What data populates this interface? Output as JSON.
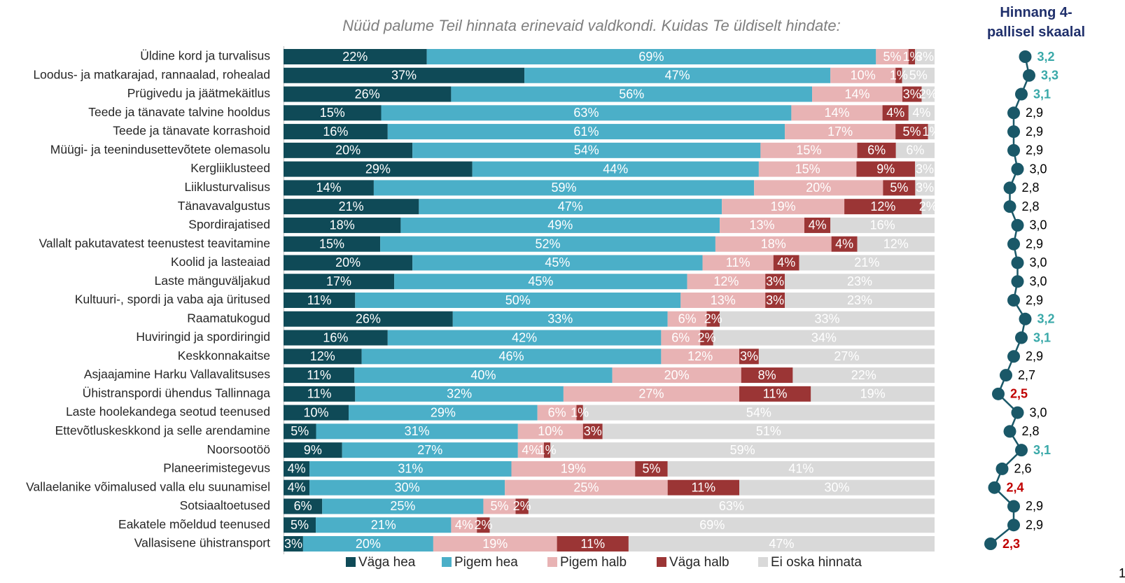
{
  "chart_data": [
    {
      "type": "bar",
      "orientation": "horizontal",
      "stacked": true,
      "title": "Nüüd palume Teil hinnata erinevaid valdkondi. Kuidas Te üldiselt hindate:",
      "categories": [
        "Üldine kord ja turvalisus",
        "Loodus- ja matkarajad, rannaalad, rohealad",
        "Prügivedu ja jäätmekäitlus",
        "Teede ja tänavate talvine hooldus",
        "Teede ja tänavate korrashoid",
        "Müügi- ja teenindusettevõtete olemasolu",
        "Kergliiklusteed",
        "Liiklusturvalisus",
        "Tänavavalgustus",
        "Spordirajatised",
        "Vallalt pakutavatest teenustest teavitamine",
        "Koolid ja lasteaiad",
        "Laste mänguväljakud",
        "Kultuuri-, spordi ja vaba aja üritused",
        "Raamatukogud",
        "Huviringid ja spordiringid",
        "Keskkonnakaitse",
        "Asjaajamine Harku Vallavalitsuses",
        "Ühistranspordi ühendus Tallinnaga",
        "Laste hoolekandega seotud teenused",
        "Ettevõtluskeskkond ja selle arendamine",
        "Noorsootöö",
        "Planeerimistegevus",
        "Vallaelanike võimalused valla elu suunamisel",
        "Sotsiaaltoetused",
        "Eakatele mõeldud teenused",
        "Vallasisene ühistransport"
      ],
      "series": [
        {
          "name": "Väga hea",
          "color": "#0f4a57",
          "values": [
            22,
            37,
            26,
            15,
            16,
            20,
            29,
            14,
            21,
            18,
            15,
            20,
            17,
            11,
            26,
            16,
            12,
            11,
            11,
            10,
            5,
            9,
            4,
            4,
            6,
            5,
            3
          ],
          "value_labels": [
            "22%",
            "37%",
            "26%",
            "15%",
            "16%",
            "20%",
            "29%",
            "14%",
            "21%",
            "18%",
            "15%",
            "20%",
            "17%",
            "11%",
            "26%",
            "16%",
            "12%",
            "11%",
            "11%",
            "10%",
            "5%",
            "9%",
            "4%",
            "4%",
            "6%",
            "5%",
            "3%"
          ]
        },
        {
          "name": "Pigem hea",
          "color": "#4bafc8",
          "values": [
            69,
            47,
            56,
            63,
            61,
            54,
            44,
            59,
            47,
            49,
            52,
            45,
            45,
            50,
            33,
            42,
            46,
            40,
            32,
            29,
            31,
            27,
            31,
            30,
            25,
            21,
            20
          ],
          "value_labels": [
            "69%",
            "47%",
            "56%",
            "63%",
            "61%",
            "54%",
            "44%",
            "59%",
            "47%",
            "49%",
            "52%",
            "45%",
            "45%",
            "50%",
            "33%",
            "42%",
            "46%",
            "40%",
            "32%",
            "29%",
            "31%",
            "27%",
            "31%",
            "30%",
            "25%",
            "21%",
            "20%"
          ]
        },
        {
          "name": "Pigem halb",
          "color": "#e8b3b4",
          "values": [
            5,
            10,
            14,
            14,
            17,
            15,
            15,
            20,
            19,
            13,
            18,
            11,
            12,
            13,
            6,
            6,
            12,
            20,
            27,
            6,
            10,
            4,
            19,
            25,
            5,
            4,
            19
          ],
          "value_labels": [
            "5%",
            "10%",
            "14%",
            "14%",
            "17%",
            "15%",
            "15%",
            "20%",
            "19%",
            "13%",
            "18%",
            "11%",
            "12%",
            "13%",
            "6%",
            "6%",
            "12%",
            "20%",
            "27%",
            "6%",
            "10%",
            "4%",
            "19%",
            "25%",
            "5%",
            "4%",
            "19%"
          ]
        },
        {
          "name": "Väga halb",
          "color": "#9b3535",
          "values": [
            1,
            1,
            3,
            4,
            5,
            6,
            9,
            5,
            12,
            4,
            4,
            4,
            3,
            3,
            2,
            2,
            3,
            8,
            11,
            1,
            3,
            1,
            5,
            11,
            2,
            2,
            11
          ],
          "value_labels": [
            "1%",
            "1%",
            "3%",
            "4%",
            "5%",
            "6%",
            "9%",
            "5%",
            "12%",
            "4%",
            "4%",
            "4%",
            "3%",
            "3%",
            "2%",
            "2%",
            "3%",
            "8%",
            "11%",
            "1%",
            "3%",
            "1%",
            "5%",
            "11%",
            "2%",
            "2%",
            "11%"
          ]
        },
        {
          "name": "Ei oska hinnata",
          "color": "#d9d9d9",
          "values": [
            3,
            5,
            2,
            4,
            1,
            6,
            3,
            3,
            2,
            16,
            12,
            21,
            23,
            23,
            33,
            34,
            27,
            22,
            19,
            54,
            51,
            59,
            41,
            30,
            63,
            69,
            47
          ],
          "value_labels": [
            "3%",
            "5%",
            "2%",
            "4%",
            "1%",
            "6%",
            "3%",
            "3%",
            "2%",
            "16%",
            "12%",
            "21%",
            "23%",
            "23%",
            "33%",
            "34%",
            "27%",
            "22%",
            "19%",
            "54%",
            "51%",
            "59%",
            "41%",
            "30%",
            "63%",
            "69%",
            "47%"
          ]
        }
      ],
      "legend": "bottom"
    },
    {
      "type": "line",
      "title": "Hinnang 4-pallisel skaalal",
      "series": [
        {
          "color": "#1a5868",
          "values": [
            3.2,
            3.3,
            3.1,
            2.9,
            2.9,
            2.9,
            3.0,
            2.8,
            2.8,
            3.0,
            2.9,
            3.0,
            3.0,
            2.9,
            3.2,
            3.1,
            2.9,
            2.7,
            2.5,
            3.0,
            2.8,
            3.1,
            2.6,
            2.4,
            2.9,
            2.9,
            2.3
          ],
          "value_labels": [
            "3,2",
            "3,3",
            "3,1",
            "2,9",
            "2,9",
            "2,9",
            "3,0",
            "2,8",
            "2,8",
            "3,0",
            "2,9",
            "3,0",
            "3,0",
            "2,9",
            "3,2",
            "3,1",
            "2,9",
            "2,7",
            "2,5",
            "3,0",
            "2,8",
            "3,1",
            "2,6",
            "2,4",
            "2,9",
            "2,9",
            "2,3"
          ],
          "label_colors": [
            "#3aa9a9",
            "#3aa9a9",
            "#3aa9a9",
            "#000000",
            "#000000",
            "#000000",
            "#000000",
            "#000000",
            "#000000",
            "#000000",
            "#000000",
            "#000000",
            "#000000",
            "#000000",
            "#3aa9a9",
            "#3aa9a9",
            "#000000",
            "#000000",
            "#c00000",
            "#000000",
            "#000000",
            "#3aa9a9",
            "#000000",
            "#c00000",
            "#000000",
            "#000000",
            "#c00000"
          ]
        }
      ]
    }
  ],
  "page_number": "1"
}
